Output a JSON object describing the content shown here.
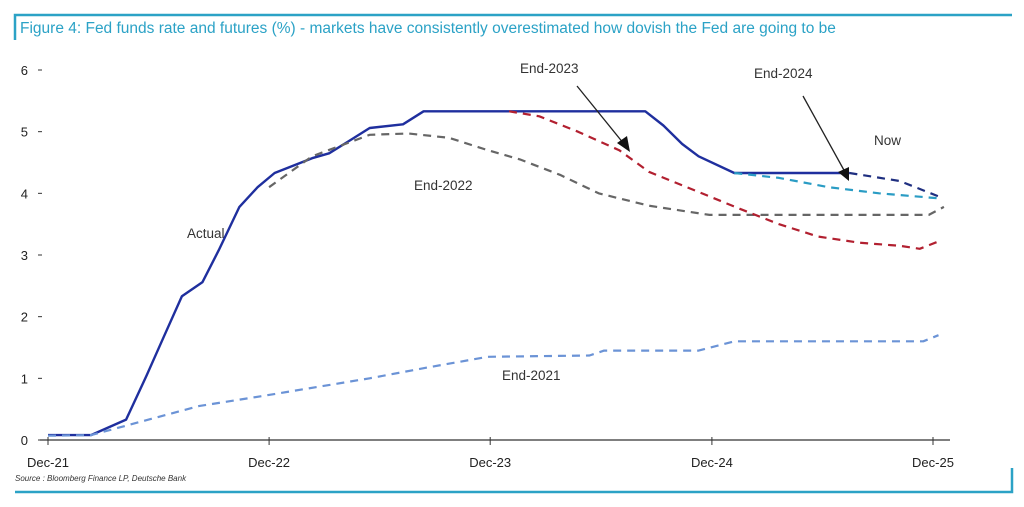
{
  "chart_data": {
    "type": "line",
    "title": "Figure 4: Fed funds rate and futures (%) - markets have consistently overestimated how dovish the Fed are going to be",
    "source": "Source : Bloomberg Finance LP, Deutsche Bank",
    "xlabel": "",
    "ylabel": "",
    "x_ticks": [
      "Dec-21",
      "Dec-22",
      "Dec-23",
      "Dec-24",
      "Dec-25"
    ],
    "x_tick_dates": [
      "2022-01-01",
      "2023-01-01",
      "2024-01-01",
      "2025-01-01",
      "2026-01-01"
    ],
    "xlim": [
      "2021-12-20",
      "2026-01-25"
    ],
    "y_ticks": [
      0,
      1,
      2,
      3,
      4,
      5,
      6
    ],
    "ylim": [
      0,
      6
    ],
    "grid": false,
    "series": [
      {
        "name": "Actual",
        "style": "solid",
        "color": "#1f2f9e",
        "points": [
          [
            "2022-01-01",
            0.08
          ],
          [
            "2022-03-13",
            0.08
          ],
          [
            "2022-05-10",
            0.33
          ],
          [
            "2022-06-13",
            1.05
          ],
          [
            "2022-07-10",
            1.65
          ],
          [
            "2022-08-10",
            2.33
          ],
          [
            "2022-09-13",
            2.56
          ],
          [
            "2022-10-10",
            3.08
          ],
          [
            "2022-11-13",
            3.78
          ],
          [
            "2022-12-13",
            4.1
          ],
          [
            "2023-01-10",
            4.33
          ],
          [
            "2023-03-13",
            4.57
          ],
          [
            "2023-04-10",
            4.65
          ],
          [
            "2023-05-10",
            4.83
          ],
          [
            "2023-06-16",
            5.06
          ],
          [
            "2023-08-10",
            5.12
          ],
          [
            "2023-09-13",
            5.33
          ],
          [
            "2024-09-13",
            5.33
          ],
          [
            "2024-10-13",
            5.1
          ],
          [
            "2024-11-13",
            4.8
          ],
          [
            "2024-12-10",
            4.6
          ],
          [
            "2025-02-07",
            4.33
          ],
          [
            "2025-08-16",
            4.33
          ]
        ]
      },
      {
        "name": "End-2021",
        "style": "dashed",
        "color": "#6b93d6",
        "points": [
          [
            "2022-01-01",
            0.07
          ],
          [
            "2022-03-13",
            0.08
          ],
          [
            "2022-09-07",
            0.55
          ],
          [
            "2022-12-25",
            0.72
          ],
          [
            "2023-06-16",
            1.0
          ],
          [
            "2023-09-22",
            1.18
          ],
          [
            "2023-12-28",
            1.35
          ],
          [
            "2024-06-13",
            1.37
          ],
          [
            "2024-07-07",
            1.45
          ],
          [
            "2024-12-10",
            1.45
          ],
          [
            "2025-02-07",
            1.6
          ],
          [
            "2025-12-16",
            1.6
          ],
          [
            "2026-01-10",
            1.7
          ]
        ]
      },
      {
        "name": "End-2022",
        "style": "dashed",
        "color": "#666666",
        "points": [
          [
            "2023-01-01",
            4.1
          ],
          [
            "2023-03-13",
            4.6
          ],
          [
            "2023-06-16",
            4.95
          ],
          [
            "2023-08-19",
            4.97
          ],
          [
            "2023-10-25",
            4.9
          ],
          [
            "2023-12-28",
            4.7
          ],
          [
            "2024-02-19",
            4.55
          ],
          [
            "2024-04-25",
            4.3
          ],
          [
            "2024-06-28",
            4.0
          ],
          [
            "2024-09-19",
            3.8
          ],
          [
            "2024-12-28",
            3.65
          ],
          [
            "2025-12-25",
            3.65
          ],
          [
            "2026-01-19",
            3.78
          ]
        ]
      },
      {
        "name": "End-2023",
        "style": "dashed",
        "color": "#b22030",
        "points": [
          [
            "2024-02-01",
            5.33
          ],
          [
            "2024-03-22",
            5.25
          ],
          [
            "2024-05-25",
            5.0
          ],
          [
            "2024-08-01",
            4.7
          ],
          [
            "2024-09-19",
            4.35
          ],
          [
            "2024-12-28",
            3.95
          ],
          [
            "2025-02-16",
            3.75
          ],
          [
            "2025-04-22",
            3.5
          ],
          [
            "2025-06-25",
            3.3
          ],
          [
            "2025-09-01",
            3.2
          ],
          [
            "2025-11-07",
            3.15
          ],
          [
            "2025-12-10",
            3.1
          ],
          [
            "2026-01-10",
            3.22
          ]
        ]
      },
      {
        "name": "End-2024",
        "style": "dashed",
        "color": "#2a9cc4",
        "points": [
          [
            "2025-02-07",
            4.33
          ],
          [
            "2025-04-22",
            4.25
          ],
          [
            "2025-07-13",
            4.1
          ],
          [
            "2025-10-04",
            4.0
          ],
          [
            "2026-01-10",
            3.92
          ]
        ]
      },
      {
        "name": "Now",
        "style": "dashed",
        "color": "#1f2f80",
        "points": [
          [
            "2025-08-16",
            4.33
          ],
          [
            "2025-11-07",
            4.2
          ],
          [
            "2026-01-10",
            3.95
          ]
        ]
      }
    ],
    "annotations": [
      "Actual",
      "End-2021",
      "End-2022",
      "End-2023",
      "End-2024",
      "Now"
    ],
    "frame_color": "#2ba2c6"
  }
}
